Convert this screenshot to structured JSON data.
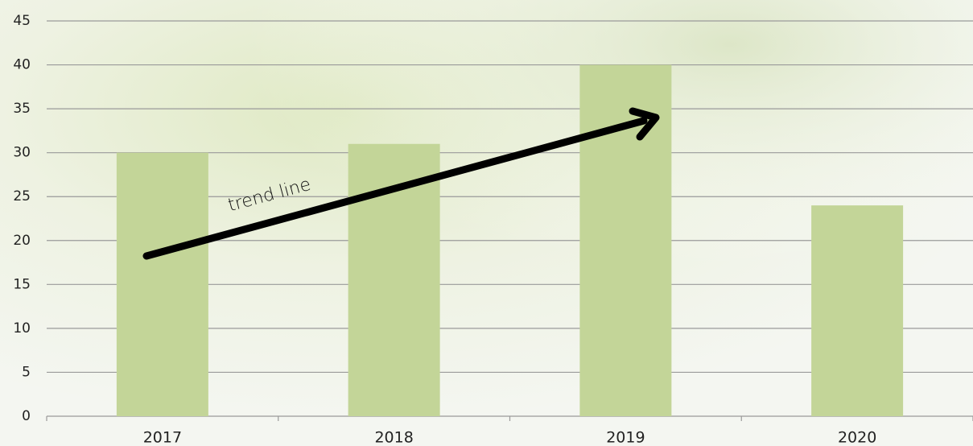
{
  "chart_data": {
    "type": "bar",
    "categories": [
      "2017",
      "2018",
      "2019",
      "2020"
    ],
    "values": [
      30,
      31,
      40,
      24
    ],
    "color": "#c3d598",
    "ylim": [
      0,
      45
    ],
    "yticks": [
      0,
      5,
      10,
      15,
      20,
      25,
      30,
      35,
      40,
      45
    ],
    "grid": true,
    "annotations": [
      "trend line"
    ]
  }
}
